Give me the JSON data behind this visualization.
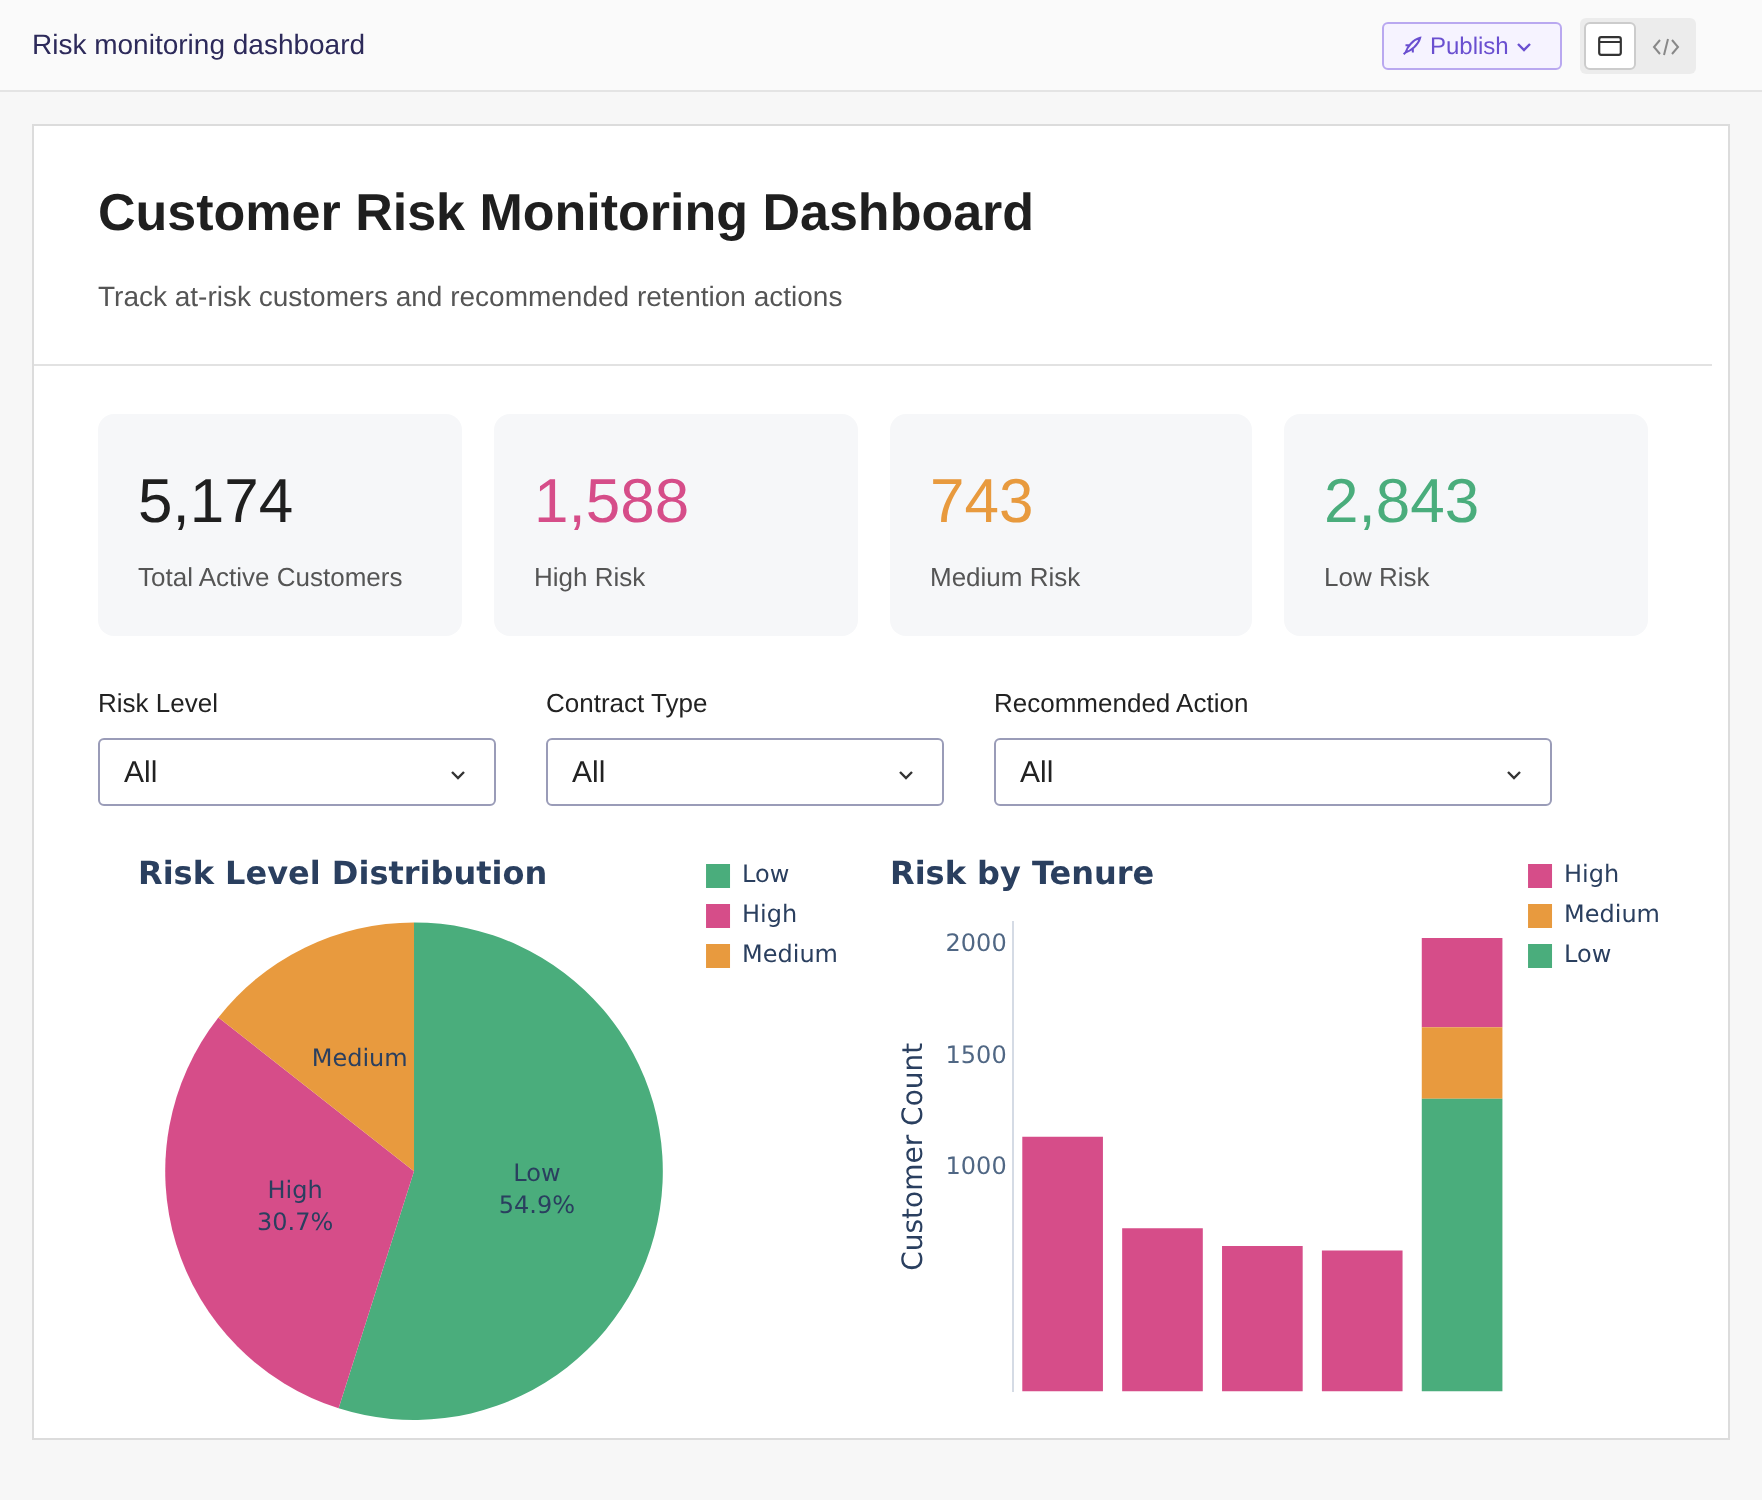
{
  "chart_data": [
    {
      "type": "other",
      "title": "Customer Risk Monitoring Dashboard",
      "subtitle": "Track at-risk customers and recommended retention actions",
      "annotations": [
        "Risk monitoring dashboard",
        "Publish",
        "5,174",
        "Total Active Customers",
        "1,588",
        "High Risk",
        "743",
        "Medium Risk",
        "2,843",
        "Low Risk",
        "Risk Level",
        "All",
        "Contract Type",
        "All",
        "Recommended Action",
        "All"
      ]
    },
    {
      "type": "pie",
      "title": "Risk Level Distribution",
      "categories": [
        "Low",
        "High",
        "Medium"
      ],
      "values": [
        54.9,
        30.7,
        14.4
      ],
      "colors": [
        "#4aad7c",
        "#d64d89",
        "#e89a3e"
      ],
      "value_labels": [
        "54.9%",
        "30.7%",
        null
      ],
      "legend": "top right"
    },
    {
      "type": "bar",
      "title": "Risk by Tenure",
      "ylabel": "Customer Count",
      "stacked": true,
      "categories": [
        null,
        null,
        null,
        null,
        null
      ],
      "ylim": [
        0,
        2100
      ],
      "yticks": [
        1000,
        1500,
        2000
      ],
      "legend": "top right",
      "grid": false,
      "series": [
        {
          "name": "Low",
          "color": "#4aad7c",
          "values": [
            null,
            null,
            null,
            null,
            1310
          ]
        },
        {
          "name": "Medium",
          "color": "#e89a3e",
          "values": [
            null,
            null,
            null,
            null,
            320
          ]
        },
        {
          "name": "High",
          "color": "#d64d89",
          "values": [
            1140,
            730,
            650,
            630,
            400
          ]
        }
      ]
    }
  ]
}
